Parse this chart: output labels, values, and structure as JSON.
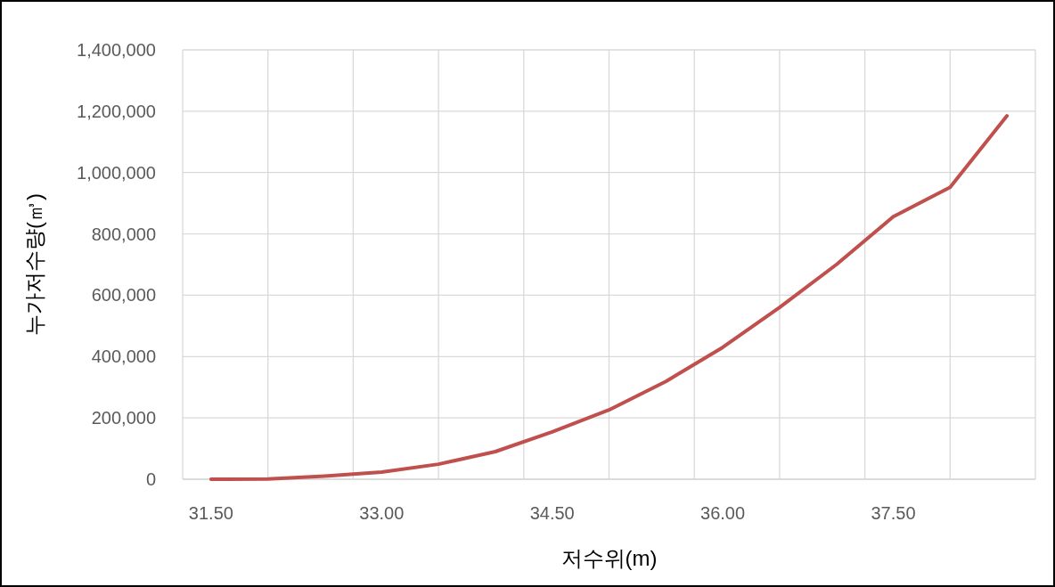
{
  "chart_data": {
    "type": "line",
    "xlabel": "저수위(m)",
    "ylabel": "누가저수량(㎥)",
    "categories": [
      "31.50",
      null,
      null,
      "33.00",
      null,
      null,
      "34.50",
      null,
      null,
      "36.00",
      null,
      null,
      "37.50",
      null,
      null
    ],
    "values": [
      0,
      1000,
      10000,
      23000,
      49000,
      90000,
      154000,
      226000,
      319000,
      430000,
      560000,
      700000,
      856000,
      952000,
      1185000
    ],
    "color": "#c0504d",
    "ylim": [
      0,
      1400000
    ],
    "yticks": [
      {
        "value": 0,
        "label": "0"
      },
      {
        "value": 200000,
        "label": "200,000"
      },
      {
        "value": 400000,
        "label": "400,000"
      },
      {
        "value": 600000,
        "label": "600,000"
      },
      {
        "value": 800000,
        "label": "800,000"
      },
      {
        "value": 1000000,
        "label": "1,000,000"
      },
      {
        "value": 1200000,
        "label": "1,200,000"
      },
      {
        "value": 1400000,
        "label": "1,400,000"
      }
    ],
    "grid": true
  }
}
